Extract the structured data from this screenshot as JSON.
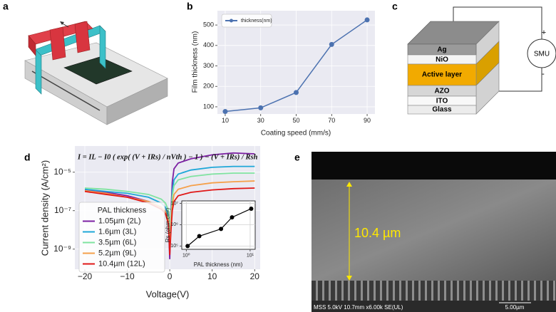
{
  "panel_labels": [
    "a",
    "b",
    "c",
    "d",
    "e"
  ],
  "device_stack": {
    "layers": [
      "Ag",
      "NiO",
      "Active layer",
      "AZO",
      "ITO",
      "Glass"
    ],
    "meter": "SMU",
    "plus": "+",
    "minus": "-"
  },
  "sem_image": {
    "thickness": "10.4 µm",
    "info": "MSS 5.0kV 10.7mm x6.00k SE(UL)",
    "scale_bar": "5.00µm"
  },
  "chart_data": [
    {
      "type": "line",
      "x_label": "Coating speed (mm/s)",
      "y_label": "Film thickness (nm)",
      "x": [
        10,
        30,
        50,
        70,
        90
      ],
      "series": [
        {
          "name": "thickness(nm)",
          "color": "#4c72b0",
          "values": [
            77,
            95,
            170,
            405,
            525
          ]
        }
      ],
      "xlim": [
        5.6,
        94.4
      ],
      "ylim": [
        65,
        570
      ],
      "xticks": [
        10,
        30,
        50,
        70,
        90
      ],
      "yticks": [
        100,
        200,
        300,
        400,
        500
      ],
      "grid": true,
      "markers": true,
      "legend": "upper left"
    },
    {
      "type": "line",
      "x_label": "Voltage(V)",
      "y_label": "Current density (A/cm²)",
      "annotation": "I = IL − I0 ( exp( (V + IRs) / nVth ) − 1 ) − (V + IRs) / Rsh",
      "legend_title": "PAL thickness",
      "legend": "lower left",
      "yscale": "log",
      "grid": true,
      "markers": false,
      "x": [
        -20,
        -15,
        -10,
        -5,
        -2,
        -1,
        -0.3,
        0,
        0.3,
        0.6,
        1,
        2,
        5,
        10,
        15,
        20
      ],
      "series": [
        {
          "name": "1.05µm (2L)",
          "color": "#7b1fa2",
          "values": [
            1.2e-06,
            9e-07,
            6e-07,
            3e-07,
            1.5e-07,
            8e-08,
            2e-08,
            3e-10,
            1e-07,
            3e-06,
            1.5e-05,
            3e-05,
            5e-05,
            8e-05,
            0.0001,
            9e-05
          ]
        },
        {
          "name": "1.6µm (3L)",
          "color": "#1ea7d8",
          "values": [
            1.3e-06,
            1e-06,
            8e-07,
            5e-07,
            2.5e-07,
            1.5e-07,
            5e-08,
            1e-09,
            5e-08,
            1e-06,
            4e-06,
            8e-06,
            1.3e-05,
            1.8e-05,
            2e-05,
            2e-05
          ]
        },
        {
          "name": "3.5µm (6L)",
          "color": "#7fe3a0",
          "values": [
            1.5e-06,
            1.3e-06,
            1e-06,
            7e-07,
            4e-07,
            2.5e-07,
            1e-07,
            2e-09,
            6e-08,
            6e-07,
            2e-06,
            4e-06,
            6e-06,
            8e-06,
            9e-06,
            9e-06
          ]
        },
        {
          "name": "5.2µm (9L)",
          "color": "#f5a04a",
          "values": [
            1.1e-06,
            8e-07,
            5e-07,
            3e-07,
            1.5e-07,
            9e-08,
            3e-08,
            1e-09,
            2e-08,
            2e-07,
            7e-07,
            1.3e-06,
            2e-06,
            2.8e-06,
            3.2e-06,
            3.5e-06
          ]
        },
        {
          "name": "10.4µm (12L)",
          "color": "#e01818",
          "values": [
            1e-06,
            7e-07,
            5e-07,
            2.5e-07,
            1.2e-07,
            7e-08,
            2e-08,
            5e-10,
            1e-08,
            1e-07,
            3e-07,
            6e-07,
            9e-07,
            1.2e-06,
            1.4e-06,
            1.5e-06
          ]
        }
      ],
      "xlim": [
        -22.35,
        21.3
      ],
      "ylim": [
        9e-11,
        0.00023
      ],
      "xticks": [
        {
          "value": -20,
          "label": "−20"
        },
        {
          "value": -10,
          "label": "−10"
        },
        0,
        10,
        20
      ],
      "yticks": [
        {
          "value": 1e-09,
          "label": "10⁻⁹"
        },
        {
          "value": 1e-07,
          "label": "10⁻⁷"
        },
        {
          "value": 1e-05,
          "label": "10⁻⁵"
        }
      ]
    },
    {
      "type": "line",
      "x_label": "PAL thickness (nm)",
      "y_label": "Rs (ohm.cm²)",
      "xscale": "log",
      "yscale": "log",
      "grid": true,
      "markers": true,
      "x": [
        1.05,
        1.6,
        3.5,
        5.2,
        10.4
      ],
      "series": [
        {
          "color": "#000000",
          "values": [
            100000.0,
            290000.0,
            630000.0,
            2200000.0,
            5600000.0
          ]
        }
      ],
      "xlim": [
        0.85,
        12
      ],
      "ylim": [
        70000.0,
        13000000.0
      ],
      "xticks": [
        {
          "value": 1,
          "label": "10⁰"
        },
        {
          "value": 10,
          "label": "10¹"
        }
      ],
      "yticks": [
        {
          "value": 100000.0,
          "label": "10⁵"
        },
        {
          "value": 1000000.0,
          "label": "10⁶"
        },
        {
          "value": 10000000.0,
          "label": "10⁷"
        }
      ]
    }
  ]
}
